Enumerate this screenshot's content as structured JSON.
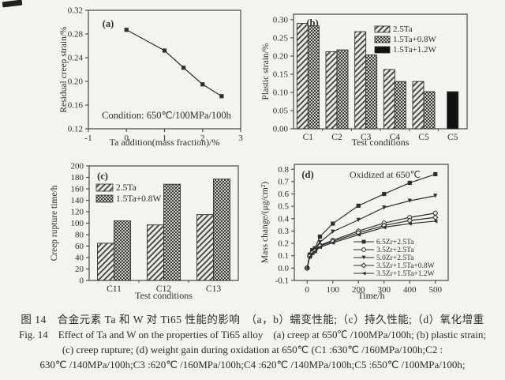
{
  "figure": {
    "caption_cn": "图 14　合金元素 Ta 和 W 对 Ti65 性能的影响　（a，b）蠕变性能;（c）持久性能;（d）氧化增重",
    "caption_en_line1": "Fig. 14　Effect of Ta and W on the properties of Ti65 alloy　(a) creep at 650℃ /100MPa/100h; (b) plastic strain;",
    "caption_en_line2": "(c) creep rupture; (d) weight gain during oxidation at 650℃ (C1 :630℃ /160MPa/100h;C2 :",
    "caption_en_line3": "630℃ /140MPa/100h;C3 :620℃ /160MPa/100h;C4 :620℃ /140MPa/100h;C5 :650℃ /100MPa/100h;"
  },
  "colors": {
    "background": "#f4f3ef",
    "ink": "#2d2d2d",
    "axis": "#474747",
    "bar_solid": "#111111"
  },
  "chart_data": [
    {
      "id": "a",
      "type": "line",
      "panel_label": "(a)",
      "xlabel": "Ta addition(mass fraction)/%",
      "ylabel": "Residual creep strain/%",
      "annotation": "Condition: 650℃/100MPa/100h",
      "xlim": [
        -1,
        3
      ],
      "ylim": [
        0.12,
        0.32
      ],
      "xticks": [
        -1,
        0,
        1,
        2,
        3
      ],
      "yticks": [
        0.12,
        0.16,
        0.2,
        0.24,
        0.28,
        0.32
      ],
      "xtick_decimals": 0,
      "ytick_decimals": 2,
      "grid": false,
      "series": [
        {
          "name": "",
          "marker": "square",
          "x": [
            0,
            1,
            1.5,
            2,
            2.5
          ],
          "y": [
            0.287,
            0.252,
            0.223,
            0.195,
            0.175
          ]
        }
      ]
    },
    {
      "id": "b",
      "type": "bar",
      "panel_label": "(b)",
      "xlabel": "Test conditions",
      "ylabel": "Plastic strain/%",
      "ylim": [
        0,
        0.315
      ],
      "yticks": [
        0.0,
        0.05,
        0.1,
        0.15,
        0.2,
        0.25,
        0.3
      ],
      "ytick_decimals": 2,
      "grid": false,
      "legend_position": "top-right",
      "categories": [
        "C1",
        "C2",
        "C3",
        "C4",
        "C5",
        "C5"
      ],
      "series": [
        {
          "name": "2.5Ta",
          "pattern": "diag",
          "values": [
            0.29,
            0.212,
            0.267,
            0.163,
            0.13,
            null
          ]
        },
        {
          "name": "1.5Ta+0.8W",
          "pattern": "cross",
          "values": [
            0.283,
            0.217,
            0.203,
            0.13,
            0.102,
            null
          ]
        },
        {
          "name": "1.5Ta+1.2W",
          "pattern": "solid",
          "values": [
            null,
            null,
            null,
            null,
            null,
            0.102
          ]
        }
      ]
    },
    {
      "id": "c",
      "type": "bar",
      "panel_label": "(c)",
      "xlabel": "Test conditions",
      "ylabel": "Creep rupture time/h",
      "ylim": [
        0,
        200
      ],
      "yticks": [
        0,
        20,
        40,
        60,
        80,
        100,
        120,
        140,
        160,
        180,
        200
      ],
      "ytick_decimals": 0,
      "grid": false,
      "legend_position": "upper-left",
      "categories": [
        "C11",
        "C12",
        "C13"
      ],
      "series": [
        {
          "name": "2.5Ta",
          "pattern": "diag",
          "values": [
            65,
            97,
            115
          ]
        },
        {
          "name": "1.5Ta+0.8W",
          "pattern": "cross",
          "values": [
            104,
            168,
            177
          ]
        }
      ]
    },
    {
      "id": "d",
      "type": "line",
      "panel_label": "(d)",
      "title": "Oxidized at 650℃",
      "xlabel": "Time/h",
      "ylabel": "Mass change/(μg/cm²)",
      "xlim": [
        -50,
        550
      ],
      "ylim": [
        -0.1,
        0.84
      ],
      "xticks": [
        0,
        100,
        200,
        300,
        400,
        500
      ],
      "yticks": [
        -0.1,
        0.0,
        0.1,
        0.2,
        0.3,
        0.4,
        0.5,
        0.6,
        0.7,
        0.8
      ],
      "xtick_decimals": 0,
      "ytick_decimals": 1,
      "grid": false,
      "legend_position": "lower-right",
      "series": [
        {
          "name": "6.5Zr+2.5Ta",
          "marker": "square",
          "x": [
            0,
            10,
            20,
            30,
            50,
            100,
            200,
            300,
            400,
            500
          ],
          "y": [
            0.0,
            0.11,
            0.145,
            0.16,
            0.255,
            0.36,
            0.505,
            0.6,
            0.69,
            0.76
          ]
        },
        {
          "name": "3.5Zr+2.5Ta",
          "marker": "circle",
          "x": [
            0,
            10,
            20,
            30,
            50,
            100,
            200,
            300,
            400,
            500
          ],
          "y": [
            0.0,
            0.1,
            0.13,
            0.145,
            0.185,
            0.225,
            0.3,
            0.365,
            0.41,
            0.445
          ]
        },
        {
          "name": "5.0Zr+2.5Ta",
          "marker": "triangle-down",
          "x": [
            0,
            10,
            20,
            30,
            50,
            100,
            200,
            300,
            400,
            500
          ],
          "y": [
            0.0,
            0.105,
            0.135,
            0.155,
            0.21,
            0.295,
            0.39,
            0.49,
            0.545,
            0.585
          ]
        },
        {
          "name": "3.5Zr+1.5Ta+0.8W",
          "marker": "diamond",
          "x": [
            0,
            10,
            20,
            30,
            50,
            100,
            200,
            300,
            400,
            500
          ],
          "y": [
            0.0,
            0.095,
            0.125,
            0.14,
            0.18,
            0.215,
            0.285,
            0.345,
            0.385,
            0.41
          ]
        },
        {
          "name": "3.5Zr+1.5Ta+1.2W",
          "marker": "triangle-left",
          "x": [
            0,
            10,
            20,
            30,
            50,
            100,
            200,
            300,
            400,
            500
          ],
          "y": [
            0.0,
            0.09,
            0.12,
            0.135,
            0.17,
            0.205,
            0.27,
            0.33,
            0.36,
            0.38
          ]
        }
      ]
    }
  ]
}
